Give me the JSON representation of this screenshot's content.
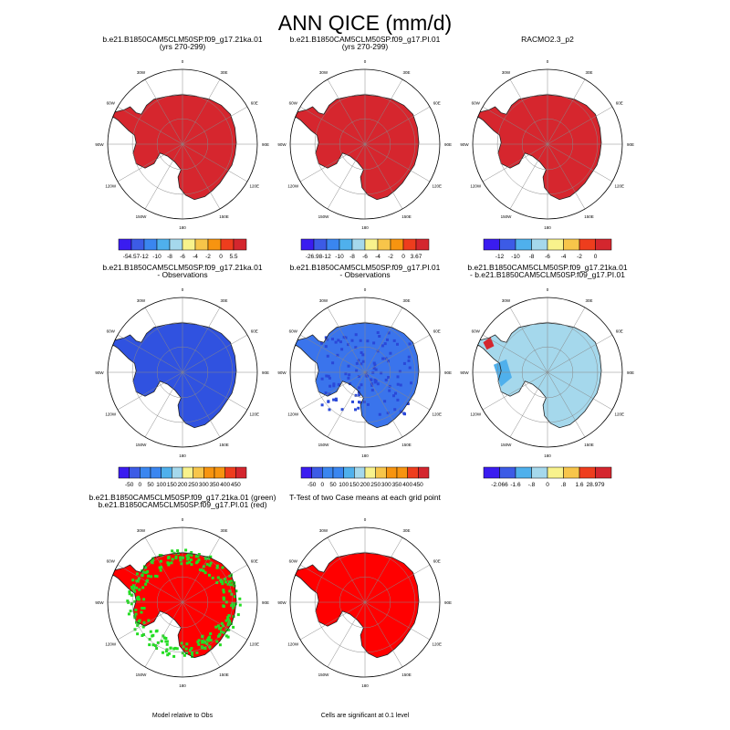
{
  "title": "ANN QICE (mm/d)",
  "colors": {
    "abs_scale": [
      "#3a1cf0",
      "#3c5be6",
      "#3a86f0",
      "#4fb0ec",
      "#a5d8ec",
      "#f8f28c",
      "#f7c54a",
      "#f79410",
      "#ee3d1d",
      "#d4262e"
    ],
    "diff_scale": [
      "#3a1cf0",
      "#3c5be6",
      "#3a86f0",
      "#4fb0ec",
      "#a5d8ec",
      "#f8f28c",
      "#f7c54a",
      "#f79410",
      "#ee3d1d",
      "#d4262e"
    ],
    "ice_red": "#d6262e",
    "obs_diff_blue1": "#3052e0",
    "obs_diff_blue2": "#3a74ec",
    "diff_light": "#a5d8ec",
    "green": "#22dd22",
    "bright_red": "#ff0000"
  },
  "lon_labels": [
    "0",
    "30E",
    "60E",
    "90E",
    "120E",
    "150E",
    "180",
    "150W",
    "120W",
    "90W",
    "60W",
    "30W"
  ],
  "chart_data": [
    {
      "type": "heatmap",
      "id": "case1",
      "title": "b.e21.B1850CAM5CLM50SP.f09_g17.21ka.01",
      "subtitle": "(yrs 270-299)",
      "fill": "ice_red",
      "colorbar": {
        "labels": [
          "-54.57",
          "-12",
          "-10",
          "-8",
          "-6",
          "-4",
          "-2",
          "0",
          "5.5"
        ]
      }
    },
    {
      "type": "heatmap",
      "id": "case2",
      "title": "b.e21.B1850CAM5CLM50SP.f09_g17.PI.01",
      "subtitle": "(yrs 270-299)",
      "fill": "ice_red",
      "colorbar": {
        "labels": [
          "-26.98",
          "-12",
          "-10",
          "-8",
          "-6",
          "-4",
          "-2",
          "0",
          "3.67"
        ]
      }
    },
    {
      "type": "heatmap",
      "id": "obs",
      "title": "RACMO2.3_p2",
      "subtitle": "",
      "fill": "ice_red",
      "colorbar": {
        "labels": [
          "-12",
          "-10",
          "-8",
          "-6",
          "-4",
          "-2",
          "0"
        ]
      }
    },
    {
      "type": "heatmap",
      "id": "case1-obs",
      "title": "b.e21.B1850CAM5CLM50SP.f09_g17.21ka.01",
      "subtitle": "- Observations",
      "fill": "obs_diff_blue1",
      "colorbar": {
        "labels": [
          "-50",
          "0",
          "50",
          "100",
          "150",
          "200",
          "250",
          "300",
          "350",
          "400",
          "450"
        ]
      }
    },
    {
      "type": "heatmap",
      "id": "case2-obs",
      "title": "b.e21.B1850CAM5CLM50SP.f09_g17.PI.01",
      "subtitle": "- Observations",
      "fill": "obs_diff_blue2",
      "colorbar": {
        "labels": [
          "-50",
          "0",
          "50",
          "100",
          "150",
          "200",
          "250",
          "300",
          "350",
          "400",
          "450"
        ]
      }
    },
    {
      "type": "heatmap",
      "id": "case1-case2",
      "title": "b.e21.B1850CAM5CLM50SP.f09_g17.21ka.01",
      "subtitle": "- b.e21.B1850CAM5CLM50SP.f09_g17.PI.01",
      "fill": "diff_light",
      "colorbar": {
        "labels": [
          "-2.066",
          "-1.6",
          "-.8",
          "0",
          ".8",
          "1.6",
          "28.979"
        ]
      }
    },
    {
      "type": "heatmap",
      "id": "model-rel-obs",
      "title": "b.e21.B1850CAM5CLM50SP.f09_g17.21ka.01 (green)",
      "subtitle": "b.e21.B1850CAM5CLM50SP.f09_g17.PI.01 (red)",
      "fill": "bright_red",
      "caption": "Model relative to Obs"
    },
    {
      "type": "heatmap",
      "id": "ttest",
      "title": "T-Test of two Case means at each grid point",
      "subtitle": "",
      "fill": "bright_red",
      "caption": "Cells are significant at 0.1 level"
    }
  ]
}
